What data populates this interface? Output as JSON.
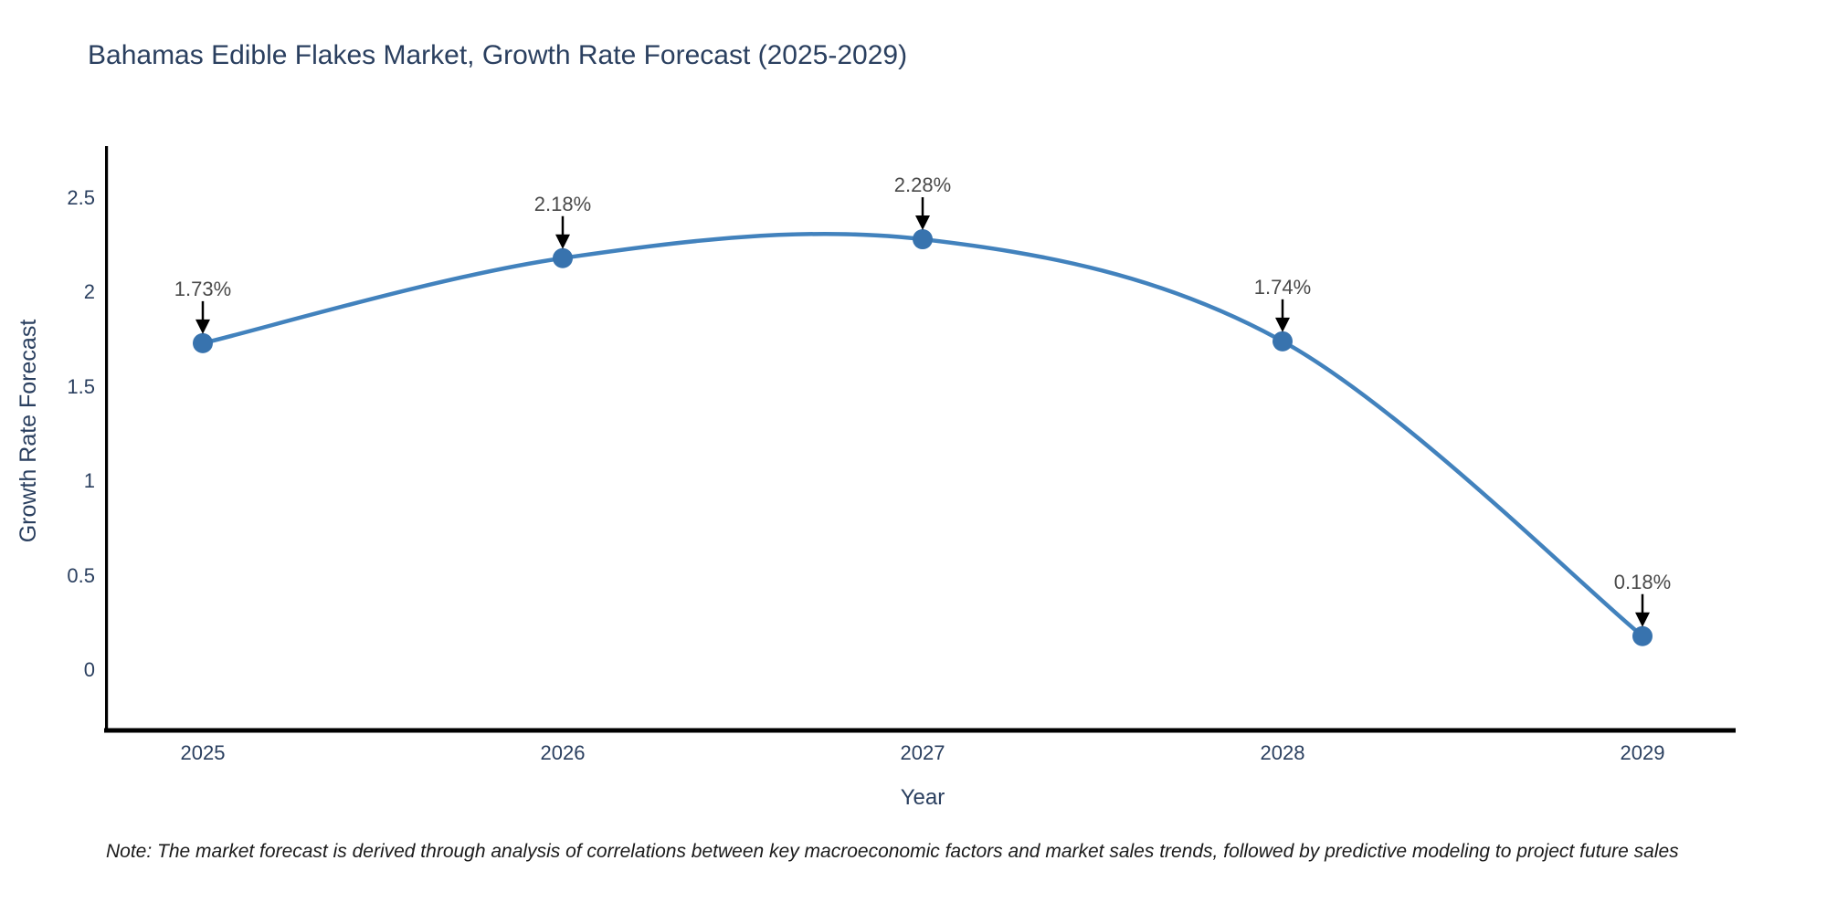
{
  "chart": {
    "title": "Bahamas Edible Flakes Market, Growth Rate Forecast (2025-2029)",
    "xlabel": "Year",
    "ylabel": "Growth Rate Forecast",
    "note": "Note: The market forecast is derived through analysis of correlations between key macroeconomic factors and market sales trends, followed by predictive modeling to project future sales",
    "colors": {
      "line_color": "#4282bd",
      "marker_color": "#3873ae",
      "spine_color": "#000000",
      "arrow_color": "#000000",
      "text_color": "#2a3f5f",
      "annotation_color": "#4a4a4a",
      "background": "#ffffff"
    }
  },
  "chart_data": {
    "type": "line",
    "title": "Bahamas Edible Flakes Market, Growth Rate Forecast (2025-2029)",
    "xlabel": "Year",
    "ylabel": "Growth Rate Forecast",
    "x": [
      2025,
      2026,
      2027,
      2028,
      2029
    ],
    "values": [
      1.73,
      2.18,
      2.28,
      1.74,
      0.18
    ],
    "labels": [
      "1.73%",
      "2.18%",
      "2.28%",
      "1.74%",
      "0.18%"
    ],
    "xtick_labels": [
      "2025",
      "2026",
      "2027",
      "2028",
      "2029"
    ],
    "yticks": [
      0,
      0.5,
      1,
      1.5,
      2,
      2.5
    ],
    "ytick_labels": [
      "0",
      "0.5",
      "1",
      "1.5",
      "2",
      "2.5"
    ],
    "ylim": [
      -0.32,
      2.77
    ],
    "xlim": [
      2024.73,
      2029.26
    ],
    "line_shape": "spline",
    "grid": false,
    "legend": null,
    "annotations_style": "value label with downward black arrow onto each marker"
  }
}
